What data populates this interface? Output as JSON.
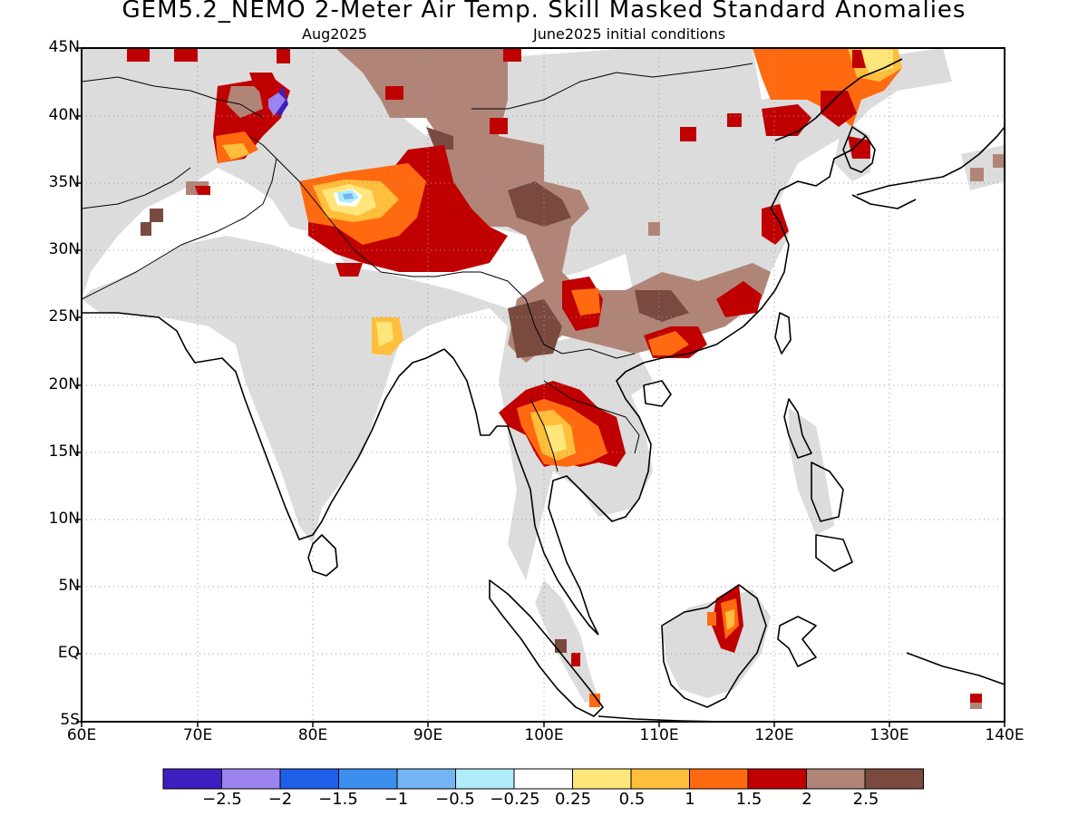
{
  "title": "GEM5.2_NEMO 2-Meter Air Temp. Skill Masked Standard Anomalies",
  "subtitle_left": "Aug2025",
  "subtitle_right": "June2025 initial conditions",
  "lat_labels": [
    "45N",
    "40N",
    "35N",
    "30N",
    "25N",
    "20N",
    "15N",
    "10N",
    "5N",
    "EQ",
    "5S"
  ],
  "lon_labels": [
    "60E",
    "70E",
    "80E",
    "90E",
    "100E",
    "110E",
    "120E",
    "130E",
    "140E"
  ],
  "colorbar": {
    "colors": [
      "#3d1fbf",
      "#9b84f0",
      "#1f5fe8",
      "#3c8fef",
      "#74b4f5",
      "#aeecf7",
      "#ffffff",
      "#ffe67a",
      "#ffbe3c",
      "#ff6a10",
      "#c00000",
      "#b08577",
      "#7a4a3f"
    ],
    "labels": [
      "−2.5",
      "−2",
      "−1.5",
      "−1",
      "−0.5",
      "−0.25",
      "0.25",
      "0.5",
      "1",
      "1.5",
      "2",
      "2.5"
    ]
  },
  "colors": {
    "land_masked": "#dcdcdc",
    "coast": "#000000",
    "gridline": "#9a9a9a"
  }
}
